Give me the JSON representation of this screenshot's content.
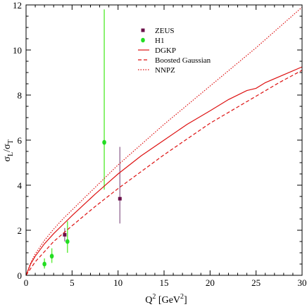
{
  "chart_data": {
    "type": "scatter",
    "xlabel": "Q² [GeV²]",
    "xlabel_base": "Q",
    "xlabel_sup": "2",
    "xlabel_unit_open": " [GeV",
    "xlabel_unit_sup": "2",
    "xlabel_unit_close": "]",
    "ylabel": "σL/σT",
    "ylabel_sigma1": "σ",
    "ylabel_sub1": "L",
    "ylabel_slash": "/σ",
    "ylabel_sub2": "T",
    "xlim": [
      0,
      30
    ],
    "ylim": [
      0,
      12
    ],
    "x_ticks": [
      0,
      5,
      10,
      15,
      20,
      25,
      30
    ],
    "y_ticks": [
      0,
      2,
      4,
      6,
      8,
      10,
      12
    ],
    "legend_position": "top-center",
    "grid": false,
    "series": [
      {
        "name": "ZEUS",
        "kind": "points",
        "marker": "square",
        "color": "#6b0f4a",
        "errcolor": "#a07aa0",
        "points": [
          {
            "x": 4.2,
            "y": 1.8,
            "ylo": 1.5,
            "yhi": 2.1
          },
          {
            "x": 10.2,
            "y": 3.4,
            "ylo": 2.3,
            "yhi": 5.7
          }
        ]
      },
      {
        "name": "H1",
        "kind": "points",
        "marker": "circle",
        "color": "#22dd22",
        "errcolor": "#66ee44",
        "points": [
          {
            "x": 2.0,
            "y": 0.5,
            "ylo": 0.3,
            "yhi": 0.75
          },
          {
            "x": 2.8,
            "y": 0.85,
            "ylo": 0.55,
            "yhi": 1.2
          },
          {
            "x": 4.5,
            "y": 1.5,
            "ylo": 1.0,
            "yhi": 2.4
          },
          {
            "x": 8.5,
            "y": 5.9,
            "ylo": 3.8,
            "yhi": 11.8
          }
        ]
      },
      {
        "name": "DGKP",
        "kind": "line",
        "dash": "solid",
        "color": "#dd1111",
        "points": [
          [
            0,
            0
          ],
          [
            0.5,
            0.5
          ],
          [
            1,
            0.85
          ],
          [
            2,
            1.4
          ],
          [
            3,
            1.85
          ],
          [
            4,
            2.25
          ],
          [
            5,
            2.65
          ],
          [
            7.5,
            3.6
          ],
          [
            10,
            4.5
          ],
          [
            12.5,
            5.3
          ],
          [
            15,
            6.0
          ],
          [
            17.5,
            6.7
          ],
          [
            20,
            7.3
          ],
          [
            22,
            7.8
          ],
          [
            24,
            8.2
          ],
          [
            25,
            8.3
          ],
          [
            26,
            8.55
          ],
          [
            28,
            8.9
          ],
          [
            30,
            9.25
          ]
        ]
      },
      {
        "name": "Boosted Gaussian",
        "kind": "line",
        "dash": "dashed",
        "color": "#dd1111",
        "points": [
          [
            0,
            0
          ],
          [
            1,
            0.6
          ],
          [
            2,
            1.05
          ],
          [
            3,
            1.5
          ],
          [
            4,
            1.85
          ],
          [
            5,
            2.2
          ],
          [
            7.5,
            3.05
          ],
          [
            10,
            3.85
          ],
          [
            12.5,
            4.6
          ],
          [
            15,
            5.35
          ],
          [
            17.5,
            6.05
          ],
          [
            20,
            6.75
          ],
          [
            22.5,
            7.35
          ],
          [
            25,
            7.95
          ],
          [
            27.5,
            8.55
          ],
          [
            30,
            9.1
          ]
        ]
      },
      {
        "name": "NNPZ",
        "kind": "line",
        "dash": "dotted",
        "color": "#dd1111",
        "points": [
          [
            0,
            0
          ],
          [
            0.5,
            0.55
          ],
          [
            1,
            0.95
          ],
          [
            2,
            1.55
          ],
          [
            3,
            2.05
          ],
          [
            4,
            2.5
          ],
          [
            5,
            2.9
          ],
          [
            7.5,
            3.9
          ],
          [
            10,
            4.9
          ],
          [
            12.5,
            5.8
          ],
          [
            15,
            6.7
          ],
          [
            17.5,
            7.55
          ],
          [
            20,
            8.4
          ],
          [
            22.5,
            9.25
          ],
          [
            25,
            10.1
          ],
          [
            27.5,
            11.0
          ],
          [
            30,
            11.9
          ]
        ]
      }
    ]
  }
}
